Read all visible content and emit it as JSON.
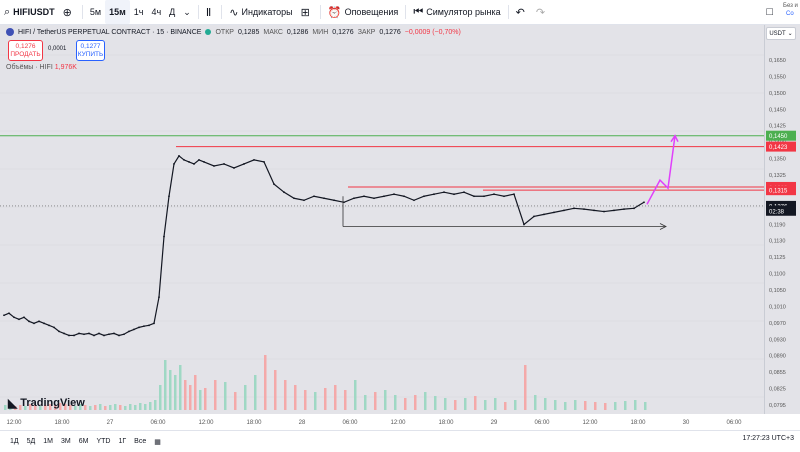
{
  "toolbar": {
    "symbol": "HIFIUSDT",
    "intervals": [
      "5м",
      "15м",
      "1ч",
      "4ч",
      "Д"
    ],
    "active_interval": "15м",
    "indicators_label": "Индикаторы",
    "alerts_label": "Оповещения",
    "replay_label": "Симулятор рынка"
  },
  "right_panel": {
    "line1": "Без и",
    "line2": "Со"
  },
  "legend": {
    "title": "HIFI / TetherUS PERPETUAL CONTRACT · 15 · BINANCE",
    "open_label": "ОТКР",
    "open": "0,1285",
    "high_label": "МАКС",
    "high": "0,1286",
    "low_label": "МИН",
    "low": "0,1276",
    "close_label": "ЗАКР",
    "close": "0,1276",
    "change": "−0,0009 (−0,70%)"
  },
  "trade": {
    "sell_price": "0,1276",
    "sell_label": "ПРОДАТЬ",
    "spread": "0,0001",
    "buy_price": "0,1277",
    "buy_label": "КУПИТЬ"
  },
  "volume_legend": {
    "label": "Объёмы · HIFI",
    "value": "1,976K"
  },
  "currency": "USDT",
  "watermark": "TradingView",
  "price_ticks": [
    "0,1650",
    "0,1550",
    "0,1500",
    "0,1450",
    "0,1425",
    "0,1400",
    "0,1350",
    "0,1325",
    "0,1300",
    "0,1250",
    "0,1190",
    "0,1130",
    "0,1125",
    "0,1100",
    "0,1050",
    "0,1010",
    "0,0970",
    "0,0930",
    "0,0890",
    "0,0855",
    "0,0825",
    "0,0795"
  ],
  "price_labels": [
    {
      "text": "0,1450",
      "color": "#4caf50"
    },
    {
      "text": "0,1423",
      "color": "#f23645"
    },
    {
      "text": "0,1323",
      "color": "#f23645"
    },
    {
      "text": "0,1315",
      "color": "#f23645"
    },
    {
      "text": "0,1276",
      "color": "#131722"
    },
    {
      "text": "02:38",
      "color": "#131722"
    }
  ],
  "time_ticks": [
    "12:00",
    "18:00",
    "27",
    "06:00",
    "12:00",
    "18:00",
    "28",
    "06:00",
    "12:00",
    "18:00",
    "29",
    "06:00",
    "12:00",
    "18:00",
    "30",
    "06:00"
  ],
  "ranges": [
    "1Д",
    "5Д",
    "1М",
    "3М",
    "6М",
    "YTD",
    "1Г",
    "Все"
  ],
  "clock": "17:27:23 UTC+3",
  "chart_data": {
    "type": "candlestick",
    "ylim": [
      0.0795,
      0.165
    ],
    "x": [
      0,
      5,
      10,
      15,
      20,
      25,
      30,
      35,
      40,
      45,
      50,
      55,
      60,
      65,
      70,
      75,
      80,
      85,
      90,
      95,
      100,
      105,
      110,
      115,
      120,
      125,
      130,
      135,
      140,
      145,
      150,
      155,
      160,
      165,
      170,
      175,
      180,
      185,
      190,
      195,
      200,
      210,
      220,
      230,
      240,
      250,
      260,
      270,
      280,
      290,
      300,
      310,
      320,
      330,
      340,
      350,
      360,
      370,
      380,
      390,
      400,
      410,
      420,
      430,
      440,
      450,
      460,
      470,
      480,
      490,
      500,
      510,
      520,
      530,
      540,
      550,
      560,
      570,
      580,
      590,
      600,
      610,
      620,
      630,
      640
    ],
    "close": [
      0.1005,
      0.101,
      0.1,
      0.0995,
      0.1,
      0.099,
      0.0985,
      0.099,
      0.0985,
      0.098,
      0.0975,
      0.0965,
      0.096,
      0.0955,
      0.0955,
      0.096,
      0.0958,
      0.096,
      0.0955,
      0.096,
      0.0955,
      0.0958,
      0.096,
      0.0955,
      0.0958,
      0.0965,
      0.097,
      0.0975,
      0.0978,
      0.098,
      0.0985,
      0.105,
      0.12,
      0.13,
      0.138,
      0.14,
      0.139,
      0.1385,
      0.138,
      0.139,
      0.1385,
      0.1375,
      0.138,
      0.137,
      0.138,
      0.139,
      0.1385,
      0.133,
      0.131,
      0.1295,
      0.129,
      0.13,
      0.1295,
      0.129,
      0.1285,
      0.1295,
      0.13,
      0.1295,
      0.13,
      0.1305,
      0.13,
      0.129,
      0.13,
      0.1305,
      0.131,
      0.1305,
      0.131,
      0.13,
      0.13,
      0.1305,
      0.13,
      0.1305,
      0.123,
      0.125,
      0.1255,
      0.126,
      0.1265,
      0.127,
      0.1268,
      0.1265,
      0.1262,
      0.1265,
      0.1268,
      0.127,
      0.1285
    ],
    "volume": [
      5,
      6,
      4,
      5,
      4,
      6,
      5,
      4,
      5,
      6,
      5,
      7,
      6,
      5,
      4,
      6,
      5,
      4,
      5,
      6,
      4,
      5,
      6,
      5,
      4,
      6,
      5,
      7,
      6,
      8,
      10,
      25,
      50,
      40,
      35,
      45,
      30,
      25,
      35,
      20,
      22,
      30,
      28,
      18,
      25,
      35,
      55,
      40,
      30,
      25,
      20,
      18,
      22,
      25,
      20,
      30,
      15,
      18,
      20,
      15,
      12,
      15,
      18,
      14,
      12,
      10,
      12,
      14,
      10,
      12,
      8,
      10,
      45,
      15,
      12,
      10,
      8,
      10,
      9,
      8,
      7,
      8,
      9,
      10,
      8
    ],
    "levels": [
      {
        "price": 0.145,
        "color": "#4caf50"
      },
      {
        "price": 0.1423,
        "color": "#f23645"
      },
      {
        "price": 0.1323,
        "color": "#f23645"
      },
      {
        "price": 0.1315,
        "color": "#f23645"
      }
    ],
    "current_price": 0.1276
  }
}
